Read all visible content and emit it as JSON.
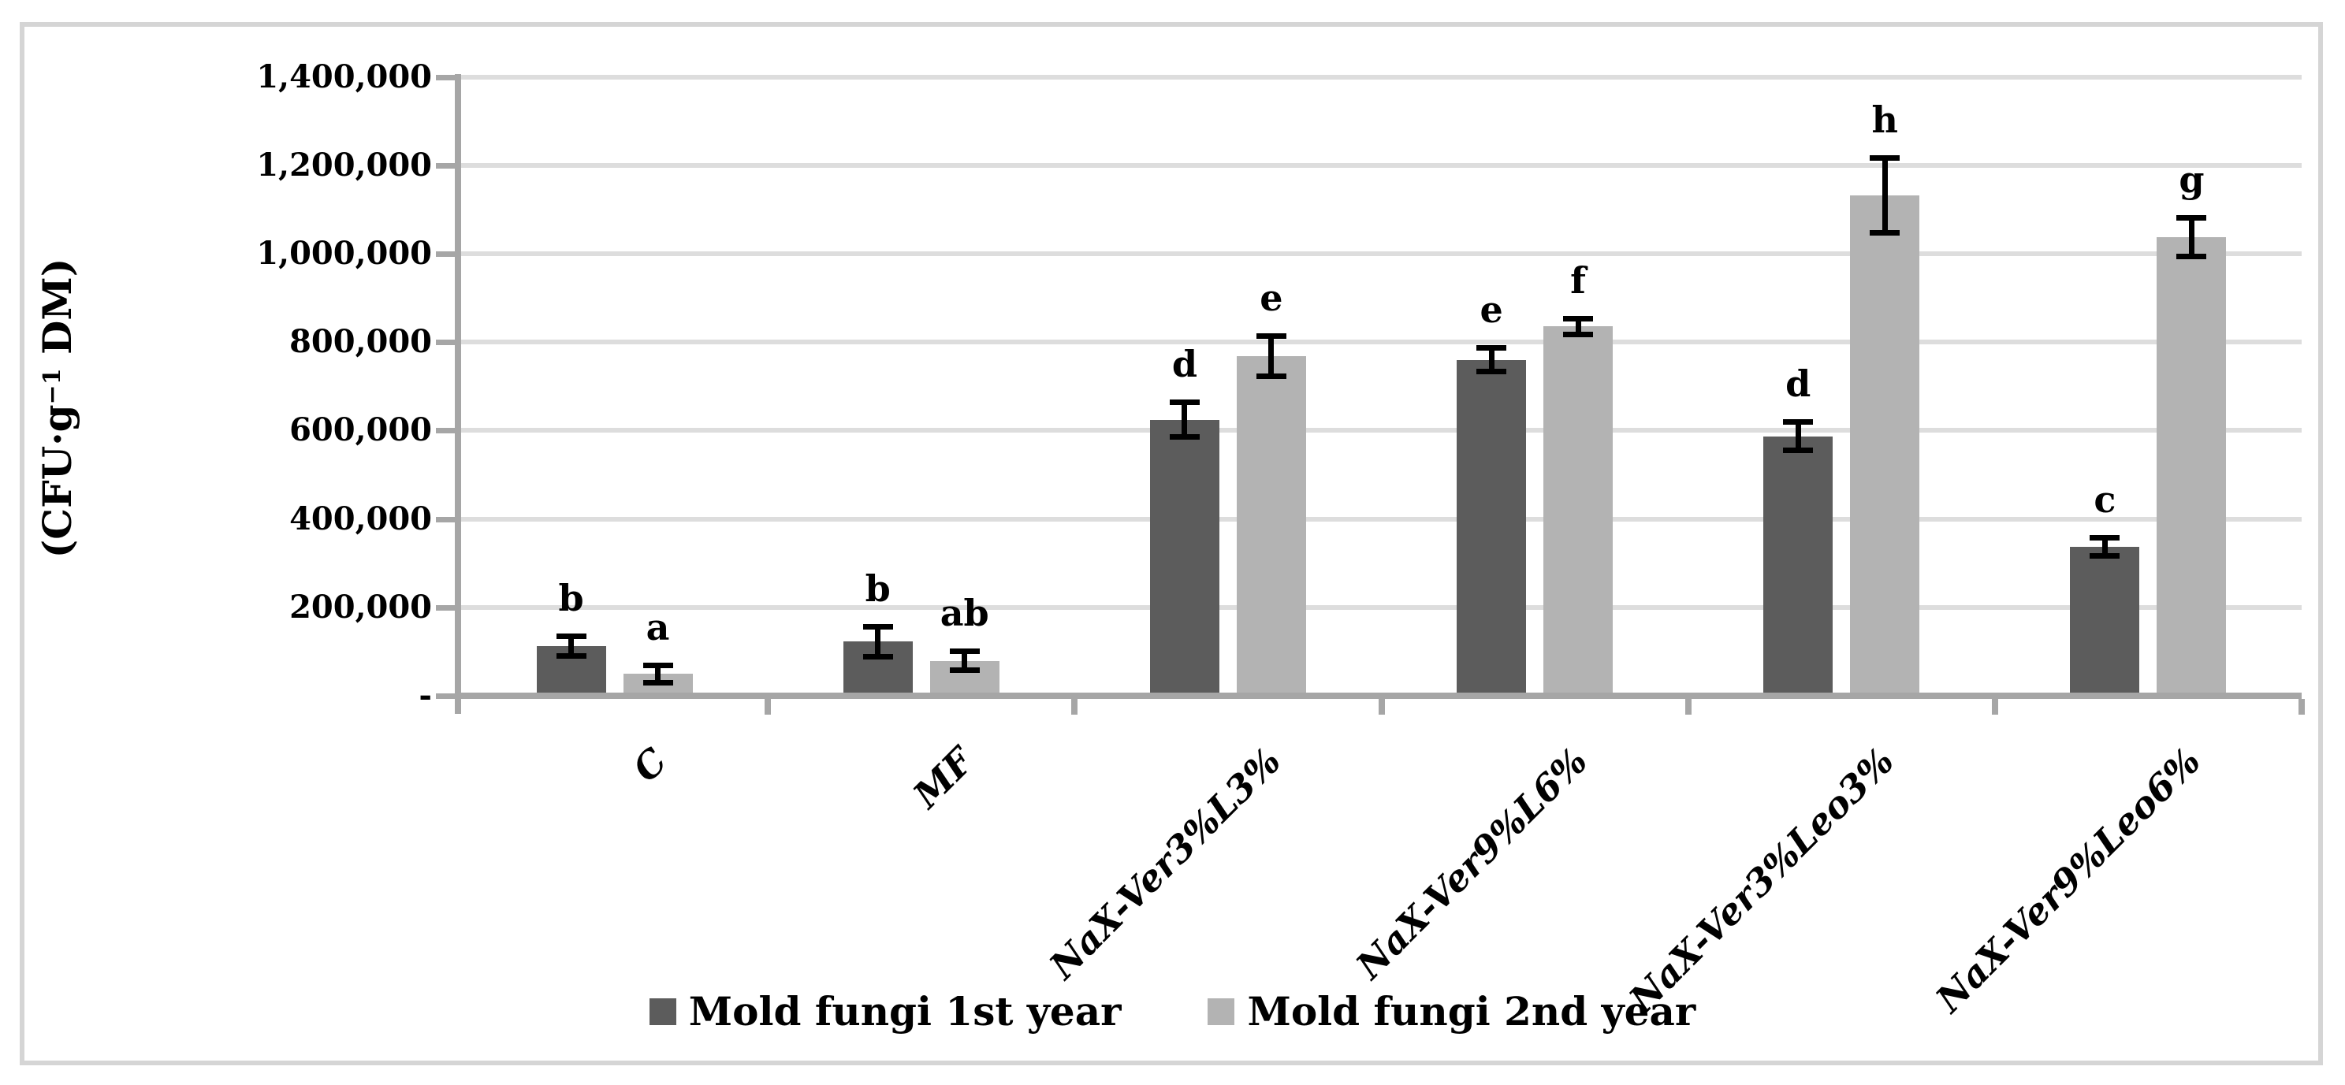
{
  "figure": {
    "background": "#ffffff",
    "border_color": "#d5d5d5"
  },
  "chart_data": {
    "type": "bar",
    "title": "",
    "xlabel": "",
    "ylabel_plain": "(CFU·g-1 DM)",
    "ylabel_parts": {
      "prefix": "(CFU·g",
      "sup": "−1",
      "suffix": " DM)"
    },
    "categories": [
      "C",
      "MF",
      "NaX-Ver3%L3%",
      "NaX-Ver9%L6%",
      "NaX-Ver3%Leo3%",
      "NaX-Ver9%Leo6%"
    ],
    "series": [
      {
        "name": "Mold fungi 1st year",
        "color": "#5c5c5c",
        "values": [
          105000,
          115000,
          617000,
          753000,
          580000,
          330000
        ],
        "errors": [
          23000,
          35000,
          40000,
          27000,
          33000,
          22000
        ],
        "letters": [
          "b",
          "b",
          "d",
          "e",
          "d",
          "c"
        ]
      },
      {
        "name": "Mold fungi 2nd year",
        "color": "#b3b3b3",
        "values": [
          42000,
          72000,
          761000,
          828000,
          1125000,
          1030000
        ],
        "errors": [
          20000,
          22000,
          47000,
          19000,
          85000,
          45000
        ],
        "letters": [
          "a",
          "ab",
          "e",
          "f",
          "h",
          "g"
        ]
      }
    ],
    "ylim": [
      0,
      1400000
    ],
    "ytick_step": 200000,
    "ytick_labels_top_to_bottom": [
      "1,400,000",
      "1,200,000",
      "1,000,000",
      "800,000",
      "600,000",
      "400,000",
      "200,000",
      "-"
    ],
    "zero_tick_label": "-",
    "grid": true,
    "gridline_color": "#dddddd",
    "axis_color": "#a6a6a6",
    "error_bar_color": "#000000",
    "legend_position": "bottom"
  }
}
